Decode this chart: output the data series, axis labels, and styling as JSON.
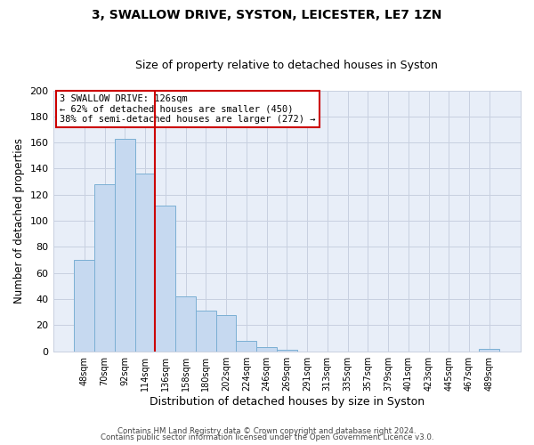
{
  "title": "3, SWALLOW DRIVE, SYSTON, LEICESTER, LE7 1ZN",
  "subtitle": "Size of property relative to detached houses in Syston",
  "xlabel": "Distribution of detached houses by size in Syston",
  "ylabel": "Number of detached properties",
  "bar_labels": [
    "48sqm",
    "70sqm",
    "92sqm",
    "114sqm",
    "136sqm",
    "158sqm",
    "180sqm",
    "202sqm",
    "224sqm",
    "246sqm",
    "269sqm",
    "291sqm",
    "313sqm",
    "335sqm",
    "357sqm",
    "379sqm",
    "401sqm",
    "423sqm",
    "445sqm",
    "467sqm",
    "489sqm"
  ],
  "bar_values": [
    70,
    128,
    163,
    136,
    112,
    42,
    31,
    28,
    8,
    3,
    1,
    0,
    0,
    0,
    0,
    0,
    0,
    0,
    0,
    0,
    2
  ],
  "bar_color": "#c6d9f0",
  "bar_edgecolor": "#7bafd4",
  "vline_color": "#cc0000",
  "vline_x_index": 3.5,
  "ylim": [
    0,
    200
  ],
  "yticks": [
    0,
    20,
    40,
    60,
    80,
    100,
    120,
    140,
    160,
    180,
    200
  ],
  "annotation_title": "3 SWALLOW DRIVE: 126sqm",
  "annotation_line1": "← 62% of detached houses are smaller (450)",
  "annotation_line2": "38% of semi-detached houses are larger (272) →",
  "annotation_box_edgecolor": "#cc0000",
  "footer1": "Contains HM Land Registry data © Crown copyright and database right 2024.",
  "footer2": "Contains public sector information licensed under the Open Government Licence v3.0.",
  "bg_color": "#ffffff",
  "plot_bg_color": "#e8eef8",
  "grid_color": "#c8d0e0",
  "title_fontsize": 10,
  "subtitle_fontsize": 9
}
